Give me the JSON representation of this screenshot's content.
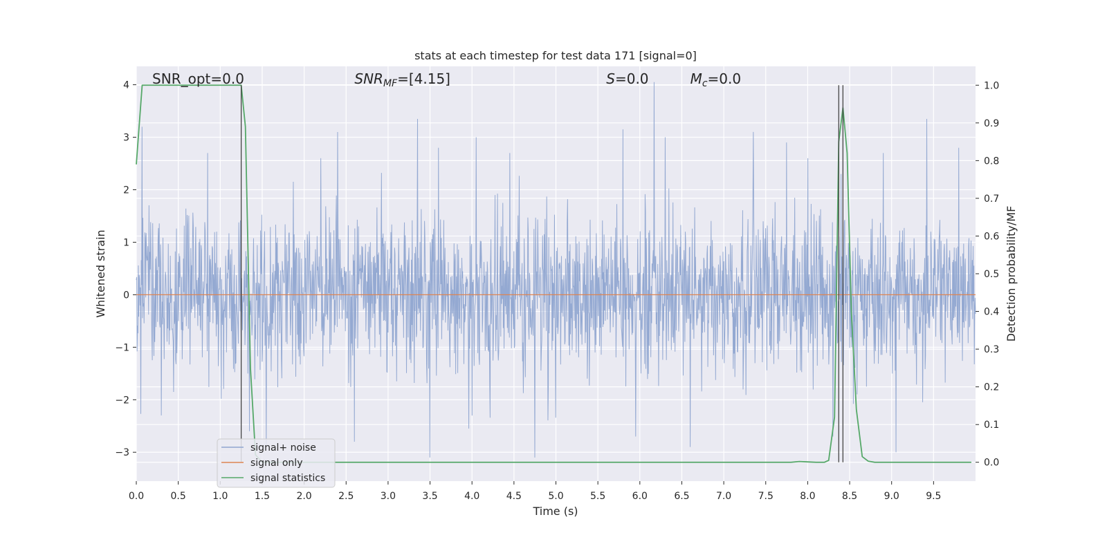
{
  "chart_data": {
    "type": "line",
    "title": "stats at each timestep for test data 171 [signal=0]",
    "xlabel": "Time (s)",
    "ylabel_left": "Whitened strain",
    "ylabel_right": "Detection probability/MF",
    "xlim": [
      0.0,
      10.0
    ],
    "ylim_left": [
      -3.55,
      4.35
    ],
    "ylim_right": [
      -0.05,
      1.05
    ],
    "x_ticks": [
      "0.0",
      "0.5",
      "1.0",
      "1.5",
      "2.0",
      "2.5",
      "3.0",
      "3.5",
      "4.0",
      "4.5",
      "5.0",
      "5.5",
      "6.0",
      "6.5",
      "7.0",
      "7.5",
      "8.0",
      "8.5",
      "9.0",
      "9.5"
    ],
    "x_tick_values": [
      0.0,
      0.5,
      1.0,
      1.5,
      2.0,
      2.5,
      3.0,
      3.5,
      4.0,
      4.5,
      5.0,
      5.5,
      6.0,
      6.5,
      7.0,
      7.5,
      8.0,
      8.5,
      9.0,
      9.5
    ],
    "y_left_ticks": [
      "−3",
      "−2",
      "−1",
      "0",
      "1",
      "2",
      "3",
      "4"
    ],
    "y_left_tick_values": [
      -3,
      -2,
      -1,
      0,
      1,
      2,
      3,
      4
    ],
    "y_right_ticks": [
      "0.0",
      "0.1",
      "0.2",
      "0.3",
      "0.4",
      "0.5",
      "0.6",
      "0.7",
      "0.8",
      "0.9",
      "1.0"
    ],
    "y_right_tick_values": [
      0.0,
      0.1,
      0.2,
      0.3,
      0.4,
      0.5,
      0.6,
      0.7,
      0.8,
      0.9,
      1.0
    ],
    "grid": true,
    "legend_position": "lower-left",
    "annotations": [
      {
        "text": "SNR_opt=0.0",
        "x": 0.19,
        "y": 4.1
      },
      {
        "text": "SNR_MF=[4.15]",
        "x": 2.6,
        "y": 4.1
      },
      {
        "text": "S=0.0",
        "x": 5.6,
        "y": 4.1
      },
      {
        "text": "M_c=0.0",
        "x": 6.6,
        "y": 4.1
      }
    ],
    "vertical_lines": [
      1.25,
      8.37,
      8.42
    ],
    "series": [
      {
        "name": "signal+ noise",
        "axis": "left",
        "color": "#8fa5d0",
        "noise": {
          "samples": 2048,
          "std": 0.75,
          "seed": 171
        },
        "peaks": [
          [
            0.07,
            3.2
          ],
          [
            0.3,
            -2.3
          ],
          [
            0.85,
            2.7
          ],
          [
            1.35,
            -2.6
          ],
          [
            1.55,
            -2.9
          ],
          [
            2.2,
            2.6
          ],
          [
            2.4,
            3.1
          ],
          [
            2.6,
            -2.8
          ],
          [
            3.35,
            3.35
          ],
          [
            3.5,
            -3.1
          ],
          [
            3.6,
            2.8
          ],
          [
            4.05,
            3.0
          ],
          [
            4.45,
            2.7
          ],
          [
            4.75,
            -3.1
          ],
          [
            5.8,
            3.15
          ],
          [
            5.95,
            -2.7
          ],
          [
            6.17,
            4.05
          ],
          [
            6.3,
            3.0
          ],
          [
            6.6,
            -2.9
          ],
          [
            7.35,
            3.1
          ],
          [
            7.75,
            2.9
          ],
          [
            8.0,
            2.6
          ],
          [
            8.3,
            -2.7
          ],
          [
            8.4,
            2.3
          ],
          [
            8.9,
            2.7
          ],
          [
            9.05,
            -3.0
          ],
          [
            9.42,
            3.35
          ],
          [
            9.8,
            2.8
          ]
        ]
      },
      {
        "name": "signal only",
        "axis": "left",
        "color": "#dd8452",
        "x": [
          0.0,
          10.0
        ],
        "y": [
          0.0,
          0.0
        ]
      },
      {
        "name": "signal statistics",
        "axis": "right",
        "color": "#55a868",
        "x": [
          0.0,
          0.07,
          0.15,
          0.5,
          1.0,
          1.2,
          1.25,
          1.3,
          1.36,
          1.42,
          1.5,
          2.0,
          3.0,
          4.0,
          5.0,
          6.0,
          7.0,
          7.8,
          7.9,
          8.0,
          8.1,
          8.2,
          8.25,
          8.32,
          8.37,
          8.42,
          8.47,
          8.52,
          8.58,
          8.65,
          8.72,
          8.8,
          9.0,
          9.5,
          9.95
        ],
        "y": [
          0.79,
          1.0,
          1.0,
          1.0,
          1.0,
          1.0,
          1.0,
          0.89,
          0.25,
          0.02,
          0.0,
          0.0,
          0.0,
          0.0,
          0.0,
          0.0,
          0.0,
          0.0,
          0.002,
          0.001,
          0.0,
          0.0,
          0.005,
          0.12,
          0.85,
          0.94,
          0.82,
          0.4,
          0.14,
          0.015,
          0.003,
          0.0,
          0.0,
          0.0,
          0.0
        ]
      }
    ]
  }
}
